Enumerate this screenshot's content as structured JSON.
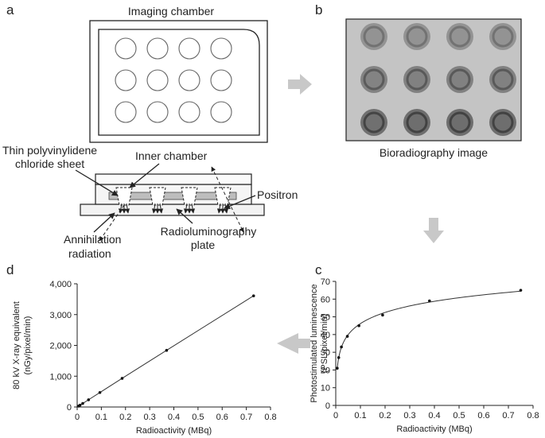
{
  "panel_letters": {
    "a": "a",
    "b": "b",
    "c": "c",
    "d": "d"
  },
  "panel_a": {
    "title": "Imaging chamber",
    "labels": {
      "sheet_line1": "Thin polyvinylidene",
      "sheet_line2": "chloride sheet",
      "inner_chamber": "Inner chamber",
      "positron": "Positron",
      "plate_line1": "Radioluminography",
      "plate_line2": "plate",
      "annihilation_line1": "Annihilation",
      "annihilation_line2": "radiation"
    },
    "wells": {
      "rows": 3,
      "cols": 4
    }
  },
  "panel_b": {
    "caption": "Bioradiography image",
    "spots_darkness": [
      [
        0.45,
        0.45,
        0.45,
        0.45
      ],
      [
        0.6,
        0.62,
        0.62,
        0.62
      ],
      [
        0.78,
        0.8,
        0.8,
        0.8
      ]
    ]
  },
  "colors": {
    "arrow": "#c8c8c8",
    "axis": "#222222",
    "line": "#333333",
    "image_bg": "#c4c4c4"
  },
  "chart_data": [
    {
      "id": "c",
      "type": "line",
      "title": "",
      "xlabel": "Radioactivity (MBq)",
      "ylabel_line1": "Photostimulated luminescence",
      "ylabel_line2": "(PSL/pixel/min)",
      "xlim": [
        0,
        0.8
      ],
      "ylim": [
        0,
        70
      ],
      "xticks": [
        "0",
        "0.1",
        "0.2",
        "0.3",
        "0.4",
        "0.5",
        "0.6",
        "0.7",
        "0.8"
      ],
      "yticks": [
        "0",
        "10",
        "20",
        "30",
        "40",
        "50",
        "60",
        "70"
      ],
      "points": {
        "x": [
          0.006,
          0.012,
          0.023,
          0.047,
          0.094,
          0.19,
          0.38,
          0.75
        ],
        "y": [
          21,
          27,
          33,
          39,
          45,
          51,
          59,
          65
        ]
      }
    },
    {
      "id": "d",
      "type": "line",
      "title": "",
      "xlabel": "Radioactivity (MBq)",
      "ylabel_line1": "80 kV X-ray equivalent",
      "ylabel_line2": "(nGy/pixel/min)",
      "xlim": [
        0,
        0.8
      ],
      "ylim": [
        0,
        4000
      ],
      "xticks": [
        "0",
        "0.1",
        "0.2",
        "0.3",
        "0.4",
        "0.5",
        "0.6",
        "0.7",
        "0.8"
      ],
      "yticks": [
        "0",
        "1,000",
        "2,000",
        "3,000",
        "4,000"
      ],
      "points": {
        "x": [
          0.006,
          0.012,
          0.023,
          0.047,
          0.094,
          0.186,
          0.37,
          0.73
        ],
        "y": [
          30,
          60,
          115,
          235,
          470,
          930,
          1840,
          3610
        ]
      }
    }
  ]
}
